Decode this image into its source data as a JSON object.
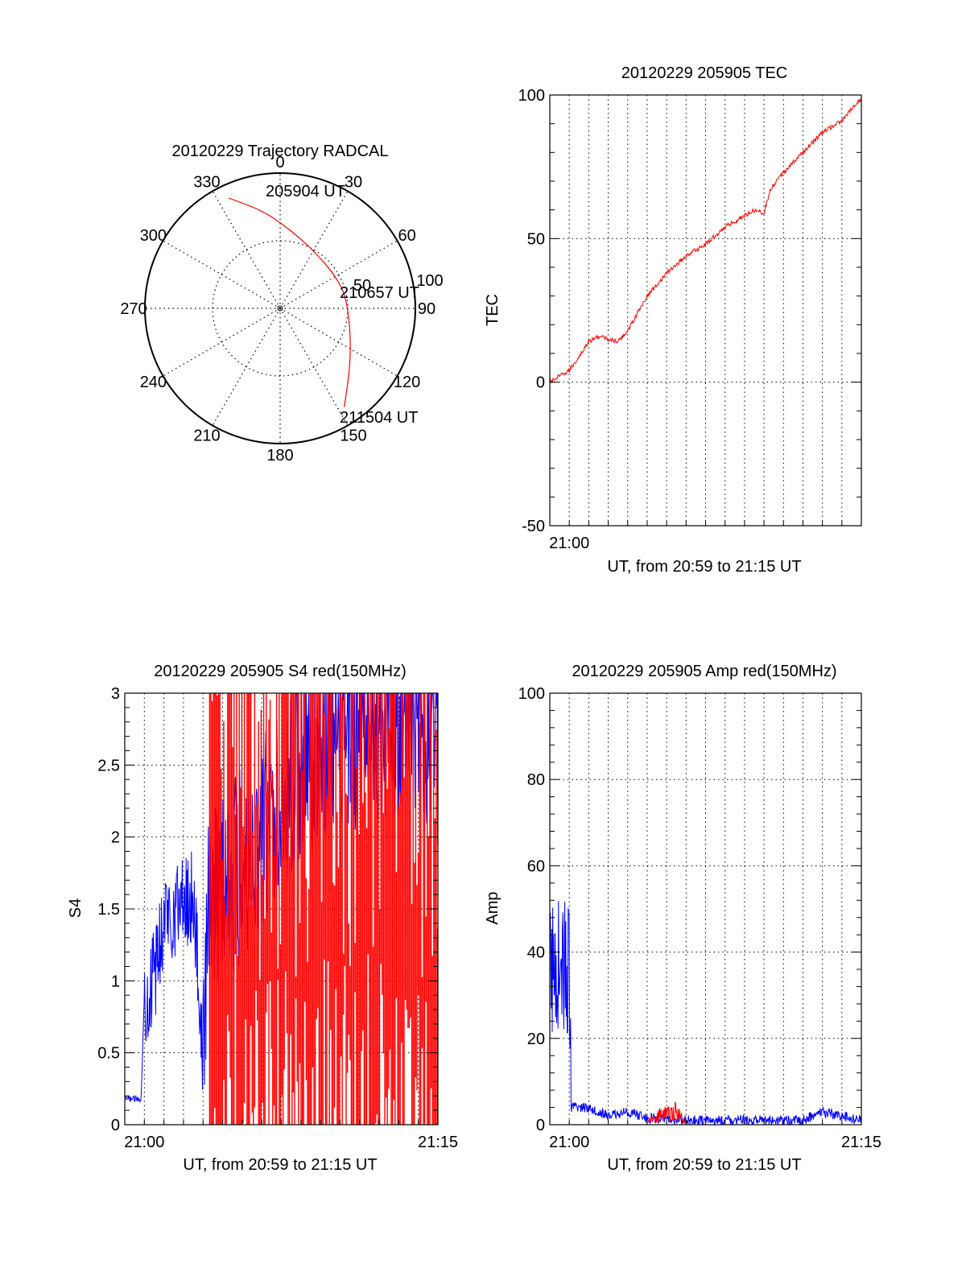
{
  "colors": {
    "red": "#ff0000",
    "blue": "#0000ff",
    "axis": "#000000",
    "grid": "#000000"
  },
  "chart_data": [
    {
      "type": "polar",
      "title": "20120229 Trajectory RADCAL",
      "angle_labels": [
        "0",
        "30",
        "60",
        "90",
        "120",
        "150",
        "180",
        "210",
        "240",
        "270",
        "300",
        "330"
      ],
      "radial_labels": [
        "50",
        "100"
      ],
      "rlim": [
        0,
        100
      ],
      "grid": true,
      "series": [
        {
          "color": "red",
          "points": [
            [
              335,
              90
            ],
            [
              349,
              74
            ],
            [
              2,
              62
            ],
            [
              18,
              53
            ],
            [
              36,
              48
            ],
            [
              56,
              47
            ],
            [
              76,
              49
            ],
            [
              96,
              51
            ],
            [
              116,
              58
            ],
            [
              133,
              70
            ],
            [
              147,
              87
            ]
          ]
        }
      ],
      "annotations": [
        {
          "text": "205904 UT"
        },
        {
          "text": "210657 UT"
        },
        {
          "text": "211504 UT"
        }
      ]
    },
    {
      "type": "line",
      "title": "20120229 205905 TEC",
      "xlabel": "UT, from 20:59 to 21:15 UT",
      "ylabel": "TEC",
      "xlim": [
        "20:59",
        "21:15"
      ],
      "ylim": [
        -50,
        100
      ],
      "yticks": [
        "-50",
        "0",
        "50",
        "100"
      ],
      "xticks": [
        "21:00"
      ],
      "grid": true,
      "series": [
        {
          "color": "red",
          "x": [
            "20:59",
            "21:00",
            "21:00:30",
            "21:01",
            "21:01:30",
            "21:02",
            "21:02:30",
            "21:03",
            "21:04",
            "21:05",
            "21:06",
            "21:07",
            "21:08",
            "21:09",
            "21:09:30",
            "21:10",
            "21:10:20",
            "21:11",
            "21:12",
            "21:13",
            "21:14",
            "21:15"
          ],
          "y": [
            0,
            4,
            9,
            14,
            16,
            15,
            14,
            18,
            30,
            38,
            44,
            48,
            54,
            58,
            60,
            59,
            67,
            73,
            80,
            87,
            91,
            99
          ]
        }
      ]
    },
    {
      "type": "line",
      "title": "20120229 205905 S4 red(150MHz)",
      "xlabel": "UT, from 20:59 to 21:15 UT",
      "ylabel": "S4",
      "xlim": [
        "20:59",
        "21:15"
      ],
      "ylim": [
        0,
        3
      ],
      "yticks": [
        "0",
        "0.5",
        "1",
        "1.5",
        "2",
        "2.5",
        "3"
      ],
      "xticks": [
        "21:00",
        "21:15"
      ],
      "grid": true,
      "series": [
        {
          "color": "blue",
          "x": [
            "20:59",
            "20:59:50",
            "21:00",
            "21:00:30",
            "21:01",
            "21:01:30",
            "21:02",
            "21:02:30",
            "21:03",
            "21:03:20",
            "21:04",
            "21:05",
            "21:06",
            "21:07",
            "21:08",
            "21:09",
            "21:10",
            "21:11",
            "21:12",
            "21:13",
            "21:14",
            "21:15"
          ],
          "y": [
            0.18,
            0.18,
            0.9,
            1.0,
            1.45,
            1.5,
            1.55,
            1.6,
            0.5,
            1.6,
            1.7,
            1.8,
            2.0,
            2.3,
            2.5,
            2.6,
            2.7,
            2.75,
            2.8,
            2.85,
            2.8,
            2.6
          ]
        },
        {
          "color": "red",
          "x": [
            "21:03:20",
            "21:15"
          ],
          "y": [
            0,
            3
          ]
        }
      ]
    },
    {
      "type": "line",
      "title": "20120229 205905 Amp red(150MHz)",
      "xlabel": "UT, from 20:59 to 21:15 UT",
      "ylabel": "Amp",
      "xlim": [
        "20:59",
        "21:15"
      ],
      "ylim": [
        0,
        100
      ],
      "yticks": [
        "0",
        "20",
        "40",
        "60",
        "80",
        "100"
      ],
      "xticks": [
        "21:00",
        "21:15"
      ],
      "grid": true,
      "series": [
        {
          "color": "blue",
          "x": [
            "20:59",
            "20:59:30",
            "21:00",
            "21:00:05",
            "21:01",
            "21:02",
            "21:03",
            "21:04",
            "21:06",
            "21:08",
            "21:10",
            "21:12",
            "21:13",
            "21:15"
          ],
          "y": [
            35,
            38,
            35,
            4,
            4,
            2,
            3,
            1.5,
            1,
            1,
            1,
            1,
            3,
            1
          ]
        },
        {
          "color": "red",
          "x": [
            "21:04",
            "21:04:30",
            "21:05:30",
            "21:06"
          ],
          "y": [
            0.5,
            2,
            3,
            0.5
          ]
        }
      ]
    }
  ]
}
